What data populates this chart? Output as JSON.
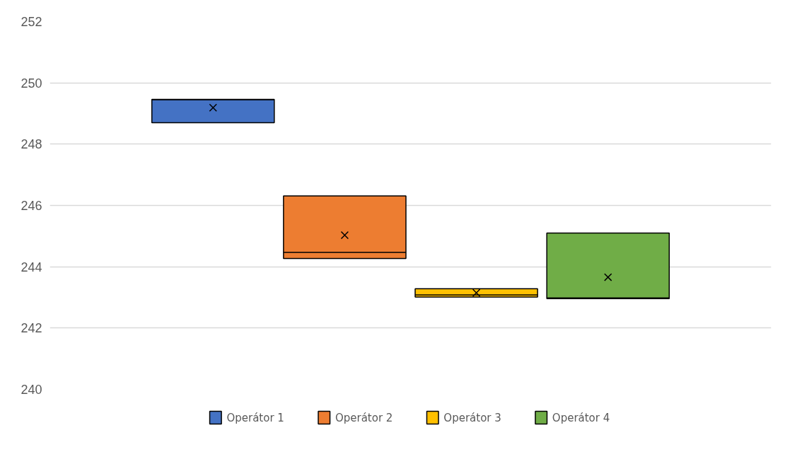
{
  "chart_data": {
    "type": "box",
    "categories": [
      null
    ],
    "series": [
      {
        "name": "Operátor 1",
        "color": "#4472c4",
        "boxes": [
          {
            "low": 248.7,
            "q1": 248.7,
            "median": 249.45,
            "q3": 249.46,
            "high": 249.46,
            "mean": 249.19
          }
        ]
      },
      {
        "name": "Operátor 2",
        "color": "#ed7d31",
        "boxes": [
          {
            "low": 244.27,
            "q1": 244.27,
            "median": 244.47,
            "q3": 246.31,
            "high": 246.31,
            "mean": 245.03
          }
        ]
      },
      {
        "name": "Operátor 3",
        "color": "#ffc000",
        "boxes": [
          {
            "low": 243.01,
            "q1": 243.01,
            "median": 243.08,
            "q3": 243.28,
            "high": 243.28,
            "mean": 243.15
          }
        ]
      },
      {
        "name": "Operátor 4",
        "color": "#70ad47",
        "boxes": [
          {
            "low": 242.96,
            "q1": 242.96,
            "median": 242.98,
            "q3": 245.1,
            "high": 245.1,
            "mean": 243.66
          }
        ]
      }
    ],
    "ylim": [
      240,
      252
    ],
    "yticks": [
      240,
      242,
      244,
      246,
      248,
      250,
      252
    ],
    "grid": "y",
    "legend": "bottom",
    "tick_labels": "y"
  }
}
